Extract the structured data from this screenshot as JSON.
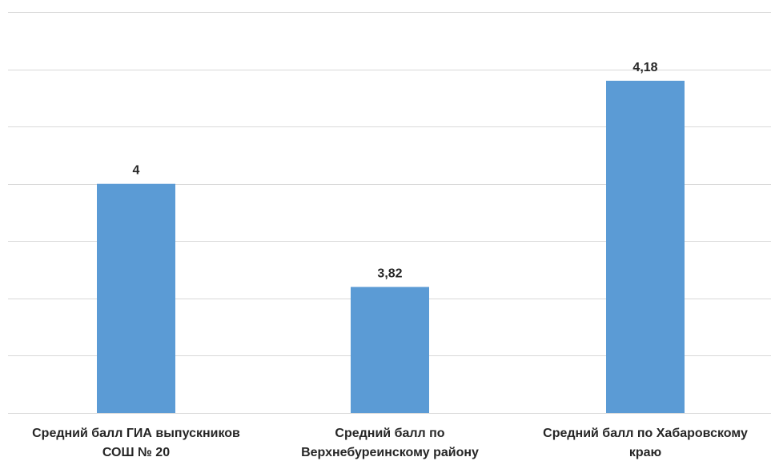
{
  "chart_data": {
    "type": "bar",
    "categories": [
      "Средний балл ГИА выпускников СОШ № 20",
      "Средний балл по Верхнебуреинскому району",
      "Средний балл по Хабаровскому краю"
    ],
    "category_lines": [
      [
        "Средний балл ГИА выпускников",
        "СОШ № 20"
      ],
      [
        "Средний балл по",
        "Верхнебуреинскому району"
      ],
      [
        "Средний балл по Хабаровскому",
        "краю"
      ]
    ],
    "values": [
      4,
      3.82,
      4.18
    ],
    "value_labels": [
      "4",
      "3,82",
      "4,18"
    ],
    "ylim": [
      3.6,
      4.3
    ],
    "grid": true,
    "bar_color": "#5B9BD5",
    "grid_color": "#D9D9D9"
  }
}
